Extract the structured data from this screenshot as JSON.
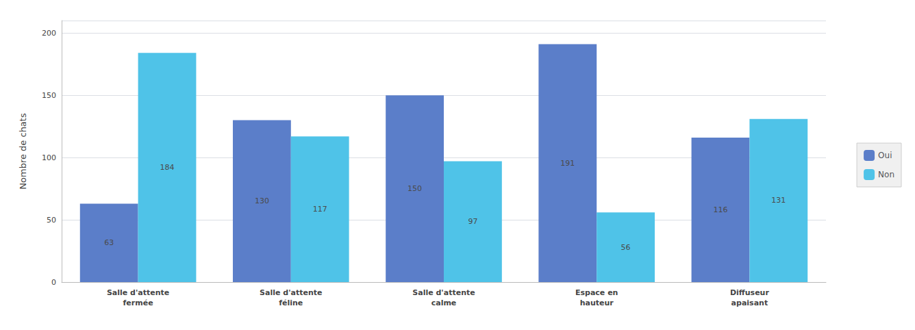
{
  "chart_data": {
    "type": "bar",
    "categories": [
      "Salle d'attente\nfermée",
      "Salle d'attente\nféline",
      "Salle d'attente\ncalme",
      "Espace en\nhauteur",
      "Diffuseur\napaisant"
    ],
    "series": [
      {
        "name": "Oui",
        "color": "#5B7EC9",
        "values": [
          63,
          130,
          150,
          191,
          116
        ]
      },
      {
        "name": "Non",
        "color": "#4FC3E8",
        "values": [
          184,
          117,
          97,
          56,
          131
        ]
      }
    ],
    "ylabel": "Nombre de chats",
    "ylim": [
      0,
      210
    ],
    "yticks": [
      0,
      50,
      100,
      150,
      200
    ],
    "grid": true,
    "legend": "right",
    "data_labels": true
  }
}
